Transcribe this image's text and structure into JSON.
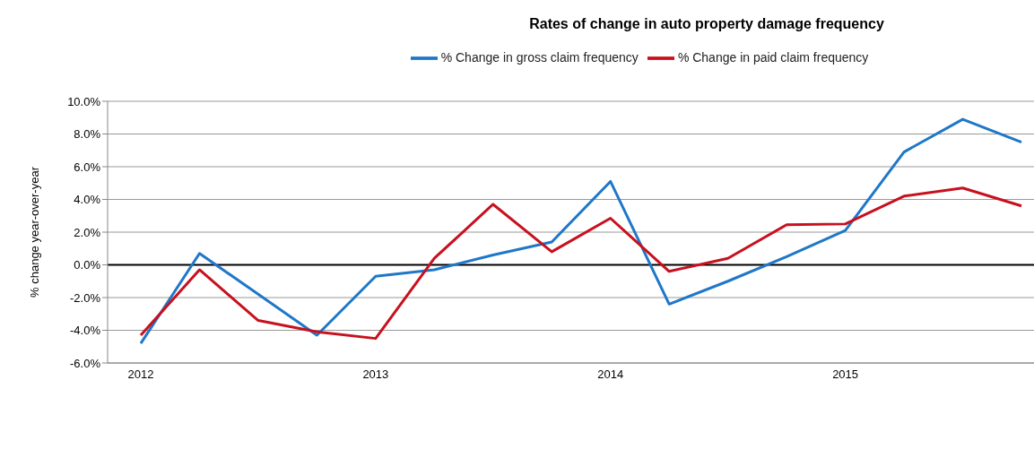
{
  "chart_data": {
    "type": "line",
    "title": "Rates of change in auto property damage frequency",
    "ylabel": "% change year-over-year",
    "categories": [
      "2012",
      null,
      null,
      null,
      "2013",
      null,
      null,
      null,
      "2014",
      null,
      null,
      null,
      "2015",
      null,
      null,
      null
    ],
    "series": [
      {
        "name": "% Change in gross claim frequency",
        "color": "#1f77c8",
        "values": [
          -4.8,
          0.7,
          -1.8,
          -4.3,
          -0.7,
          -0.3,
          0.6,
          1.4,
          5.1,
          -2.4,
          -1.0,
          0.5,
          2.1,
          6.9,
          8.9,
          7.5
        ]
      },
      {
        "name": "% Change in paid claim frequency",
        "color": "#c8101e",
        "values": [
          -4.3,
          -0.3,
          -3.4,
          -4.1,
          -4.5,
          0.4,
          3.7,
          0.8,
          2.85,
          -0.4,
          0.4,
          2.45,
          2.5,
          4.2,
          4.7,
          3.6
        ]
      }
    ],
    "ylim": [
      -6,
      10
    ],
    "yticks": [
      {
        "value": -6,
        "label": "-6.0%"
      },
      {
        "value": -4,
        "label": "-4.0%"
      },
      {
        "value": -2,
        "label": "-2.0%"
      },
      {
        "value": 0,
        "label": "0.0%"
      },
      {
        "value": 2,
        "label": "2.0%"
      },
      {
        "value": 4,
        "label": "4.0%"
      },
      {
        "value": 6,
        "label": "6.0%"
      },
      {
        "value": 8,
        "label": "8.0%"
      },
      {
        "value": 10,
        "label": "10.0%"
      }
    ],
    "ref_lines": [
      {
        "axis": "y",
        "value": 0,
        "color": "#000000"
      }
    ],
    "grid": "y",
    "legend": "top",
    "marker": "none",
    "line_style": "solid"
  }
}
